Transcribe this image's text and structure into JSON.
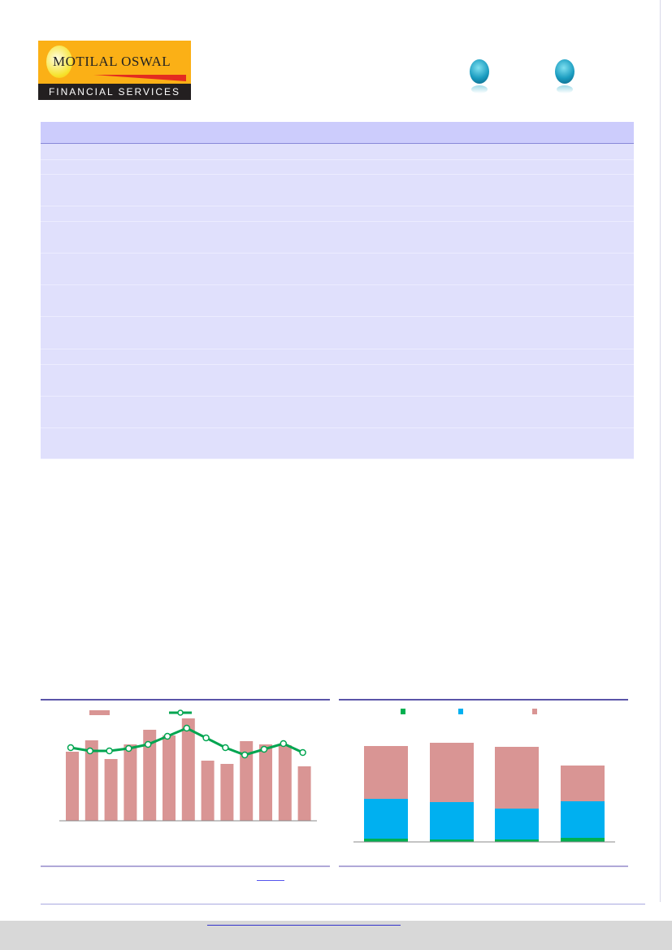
{
  "header": {
    "logo_text": "MOTILAL OSWAL",
    "logo_subtext": "FINANCIAL SERVICES",
    "icons": [
      "chart-globe-icon",
      "chart-globe-icon"
    ]
  },
  "colors": {
    "table_header": "#ccccfc",
    "table_row": "#e0e0fc",
    "bar_pink": "#d99594",
    "line_green": "#00a550",
    "stack_green": "#00b050",
    "stack_blue": "#00b0f0",
    "stack_pink": "#d99594"
  },
  "chart_data": [
    {
      "type": "bar",
      "series": [
        {
          "kind": "bar",
          "values": [
            85,
            99,
            76,
            94,
            112,
            105,
            126,
            74,
            70,
            98,
            94,
            93,
            67
          ]
        },
        {
          "kind": "line",
          "values": [
            90,
            86,
            86,
            89,
            94,
            104,
            114,
            102,
            90,
            81,
            88,
            95,
            84
          ]
        }
      ],
      "legend": "top-left",
      "grid": false
    },
    {
      "type": "bar",
      "stacked": true,
      "series": [
        {
          "color": "green",
          "values": [
            4,
            3,
            3,
            5
          ]
        },
        {
          "color": "blue",
          "values": [
            49,
            46,
            38,
            45
          ]
        },
        {
          "color": "pink",
          "values": [
            65,
            73,
            76,
            44
          ]
        }
      ],
      "legend": "top",
      "grid": false
    }
  ]
}
